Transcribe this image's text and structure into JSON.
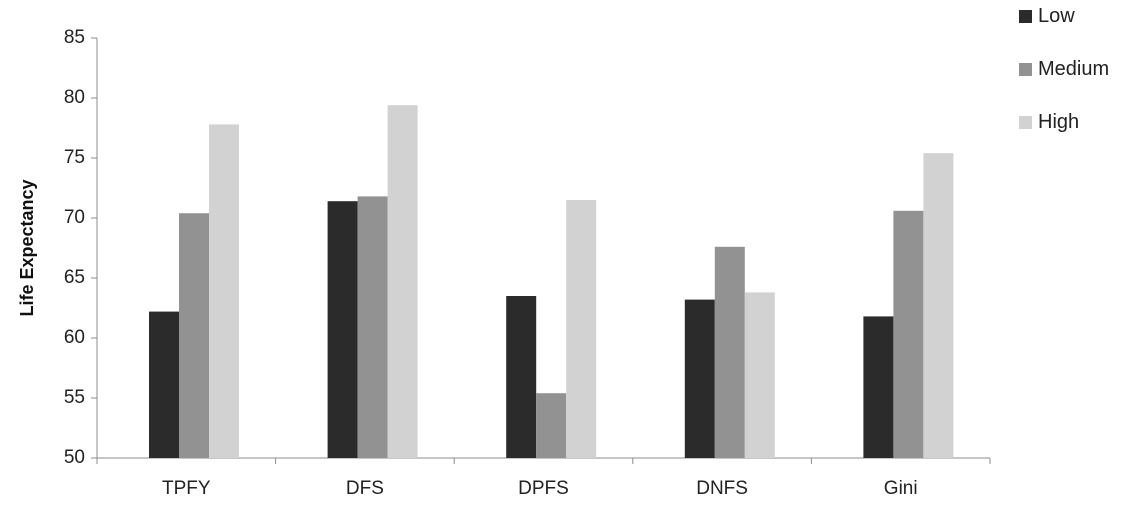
{
  "chart_data": {
    "type": "bar",
    "categories": [
      "TPFY",
      "DFS",
      "DPFS",
      "DNFS",
      "Gini"
    ],
    "series": [
      {
        "name": "Low",
        "values": [
          62.2,
          71.4,
          63.5,
          63.2,
          61.8
        ],
        "color": "#2b2b2b"
      },
      {
        "name": "Medium",
        "values": [
          70.4,
          71.8,
          55.4,
          67.6,
          70.6
        ],
        "color": "#929292"
      },
      {
        "name": "High",
        "values": [
          77.8,
          79.4,
          71.5,
          63.8,
          75.4
        ],
        "color": "#d2d2d2"
      }
    ],
    "title": "",
    "xlabel": "",
    "ylabel": "Life Expectancy",
    "ylim": [
      50,
      85
    ],
    "yticks": [
      50,
      55,
      60,
      65,
      70,
      75,
      80,
      85
    ],
    "grid": false,
    "legend_position": "top-right"
  }
}
